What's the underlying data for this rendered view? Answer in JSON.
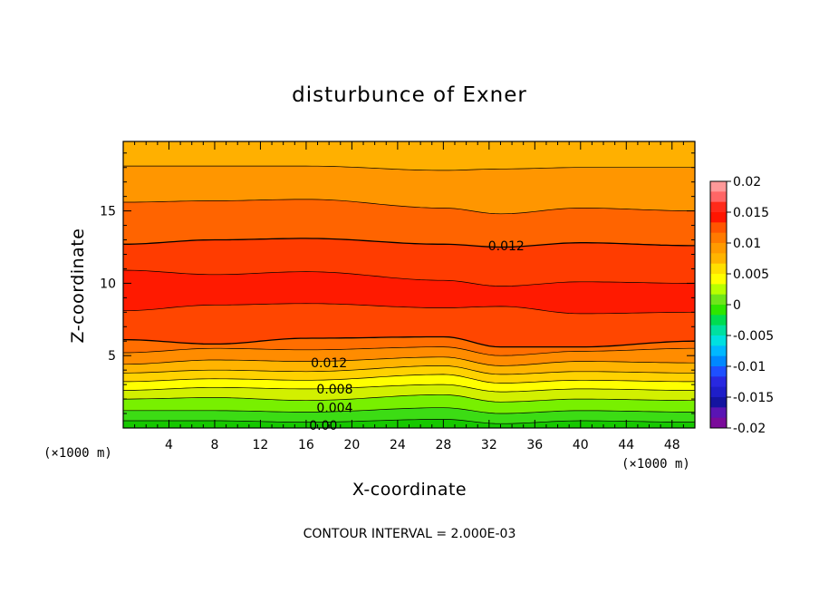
{
  "chart_data": {
    "type": "heatmap",
    "subtype": "filled-contour",
    "title": "disturbunce of Exner",
    "xlabel": "X-coordinate",
    "ylabel": "Z-coordinate",
    "x_unit_left": "(×1000 m)",
    "x_unit_right": "(×1000 m)",
    "xlim": [
      0,
      50
    ],
    "ylim": [
      0,
      19.8
    ],
    "x_ticks": [
      4,
      8,
      12,
      16,
      20,
      24,
      28,
      32,
      36,
      40,
      44,
      48
    ],
    "y_ticks": [
      5,
      10,
      15
    ],
    "footer": "CONTOUR INTERVAL = 2.000E-03",
    "colorbar": {
      "range": [
        -0.02,
        0.02
      ],
      "tick_labels": [
        "0.02",
        "0.015",
        "0.01",
        "0.005",
        "0",
        "-0.005",
        "-0.01",
        "-0.015",
        "-0.02"
      ],
      "tick_values": [
        0.02,
        0.015,
        0.01,
        0.005,
        0,
        -0.005,
        -0.01,
        -0.015,
        -0.02
      ],
      "colors_top_to_bottom": [
        "#ff9999",
        "#ff6666",
        "#ff2a1a",
        "#ff1500",
        "#ff5500",
        "#ff7a00",
        "#ff9a00",
        "#ffb400",
        "#ffe000",
        "#ffff00",
        "#b8ff00",
        "#6ee61a",
        "#2ee600",
        "#00dc50",
        "#00e0a0",
        "#00e0e0",
        "#00b8ff",
        "#0088ff",
        "#1e50ff",
        "#2828e0",
        "#1e1ec8",
        "#1414a0",
        "#5a14b4",
        "#7a0a9a"
      ]
    },
    "levels": [
      0.0,
      0.002,
      0.004,
      0.006,
      0.008,
      0.01,
      0.012,
      0.014,
      0.016
    ],
    "level_colors": [
      "#16c800",
      "#3cdc14",
      "#78f000",
      "#d2f000",
      "#ffff00",
      "#ffb800",
      "#ff7800",
      "#ff5500",
      "#ff2800",
      "#ff1400"
    ],
    "profile_columns": [
      {
        "x": 0,
        "z": [
          0.0,
          0.5,
          1.2,
          2.0,
          2.6,
          3.2,
          3.8,
          4.4,
          5.2,
          6.1,
          8.1,
          10.9,
          12.7,
          15.6,
          18.1
        ]
      },
      {
        "x": 8,
        "z": [
          0.0,
          0.5,
          1.2,
          2.1,
          2.8,
          3.4,
          4.0,
          4.7,
          5.5,
          5.8,
          8.5,
          10.6,
          13.0,
          15.7,
          18.1
        ]
      },
      {
        "x": 16,
        "z": [
          0.0,
          0.4,
          1.1,
          1.9,
          2.7,
          3.3,
          3.9,
          4.6,
          5.4,
          6.2,
          8.6,
          10.8,
          13.1,
          15.8,
          18.1
        ]
      },
      {
        "x": 28,
        "z": [
          0.0,
          0.6,
          1.4,
          2.3,
          3.0,
          3.7,
          4.3,
          4.9,
          5.6,
          6.3,
          8.3,
          10.2,
          12.7,
          15.2,
          17.8
        ]
      },
      {
        "x": 33,
        "z": [
          0.0,
          0.3,
          1.0,
          1.8,
          2.5,
          3.1,
          3.7,
          4.3,
          5.0,
          5.6,
          8.4,
          9.8,
          12.5,
          14.8,
          17.9
        ]
      },
      {
        "x": 40,
        "z": [
          0.0,
          0.5,
          1.2,
          2.0,
          2.7,
          3.3,
          3.9,
          4.6,
          5.3,
          5.6,
          7.9,
          10.1,
          12.8,
          15.2,
          18.0
        ]
      },
      {
        "x": 50,
        "z": [
          0.0,
          0.4,
          1.1,
          1.9,
          2.6,
          3.2,
          3.8,
          4.5,
          5.5,
          6.0,
          8.0,
          10.0,
          12.6,
          15.0,
          18.0
        ]
      }
    ],
    "contour_labels": [
      {
        "text": "0.012",
        "x": 33.5,
        "z": 12.6
      },
      {
        "text": "0.012",
        "x": 18,
        "z": 4.5
      },
      {
        "text": "0.008",
        "x": 18.5,
        "z": 2.7
      },
      {
        "text": "0.004",
        "x": 18.5,
        "z": 1.4
      },
      {
        "text": "0.00",
        "x": 17.5,
        "z": 0.2
      }
    ],
    "grid": false,
    "legend_position": "right"
  }
}
